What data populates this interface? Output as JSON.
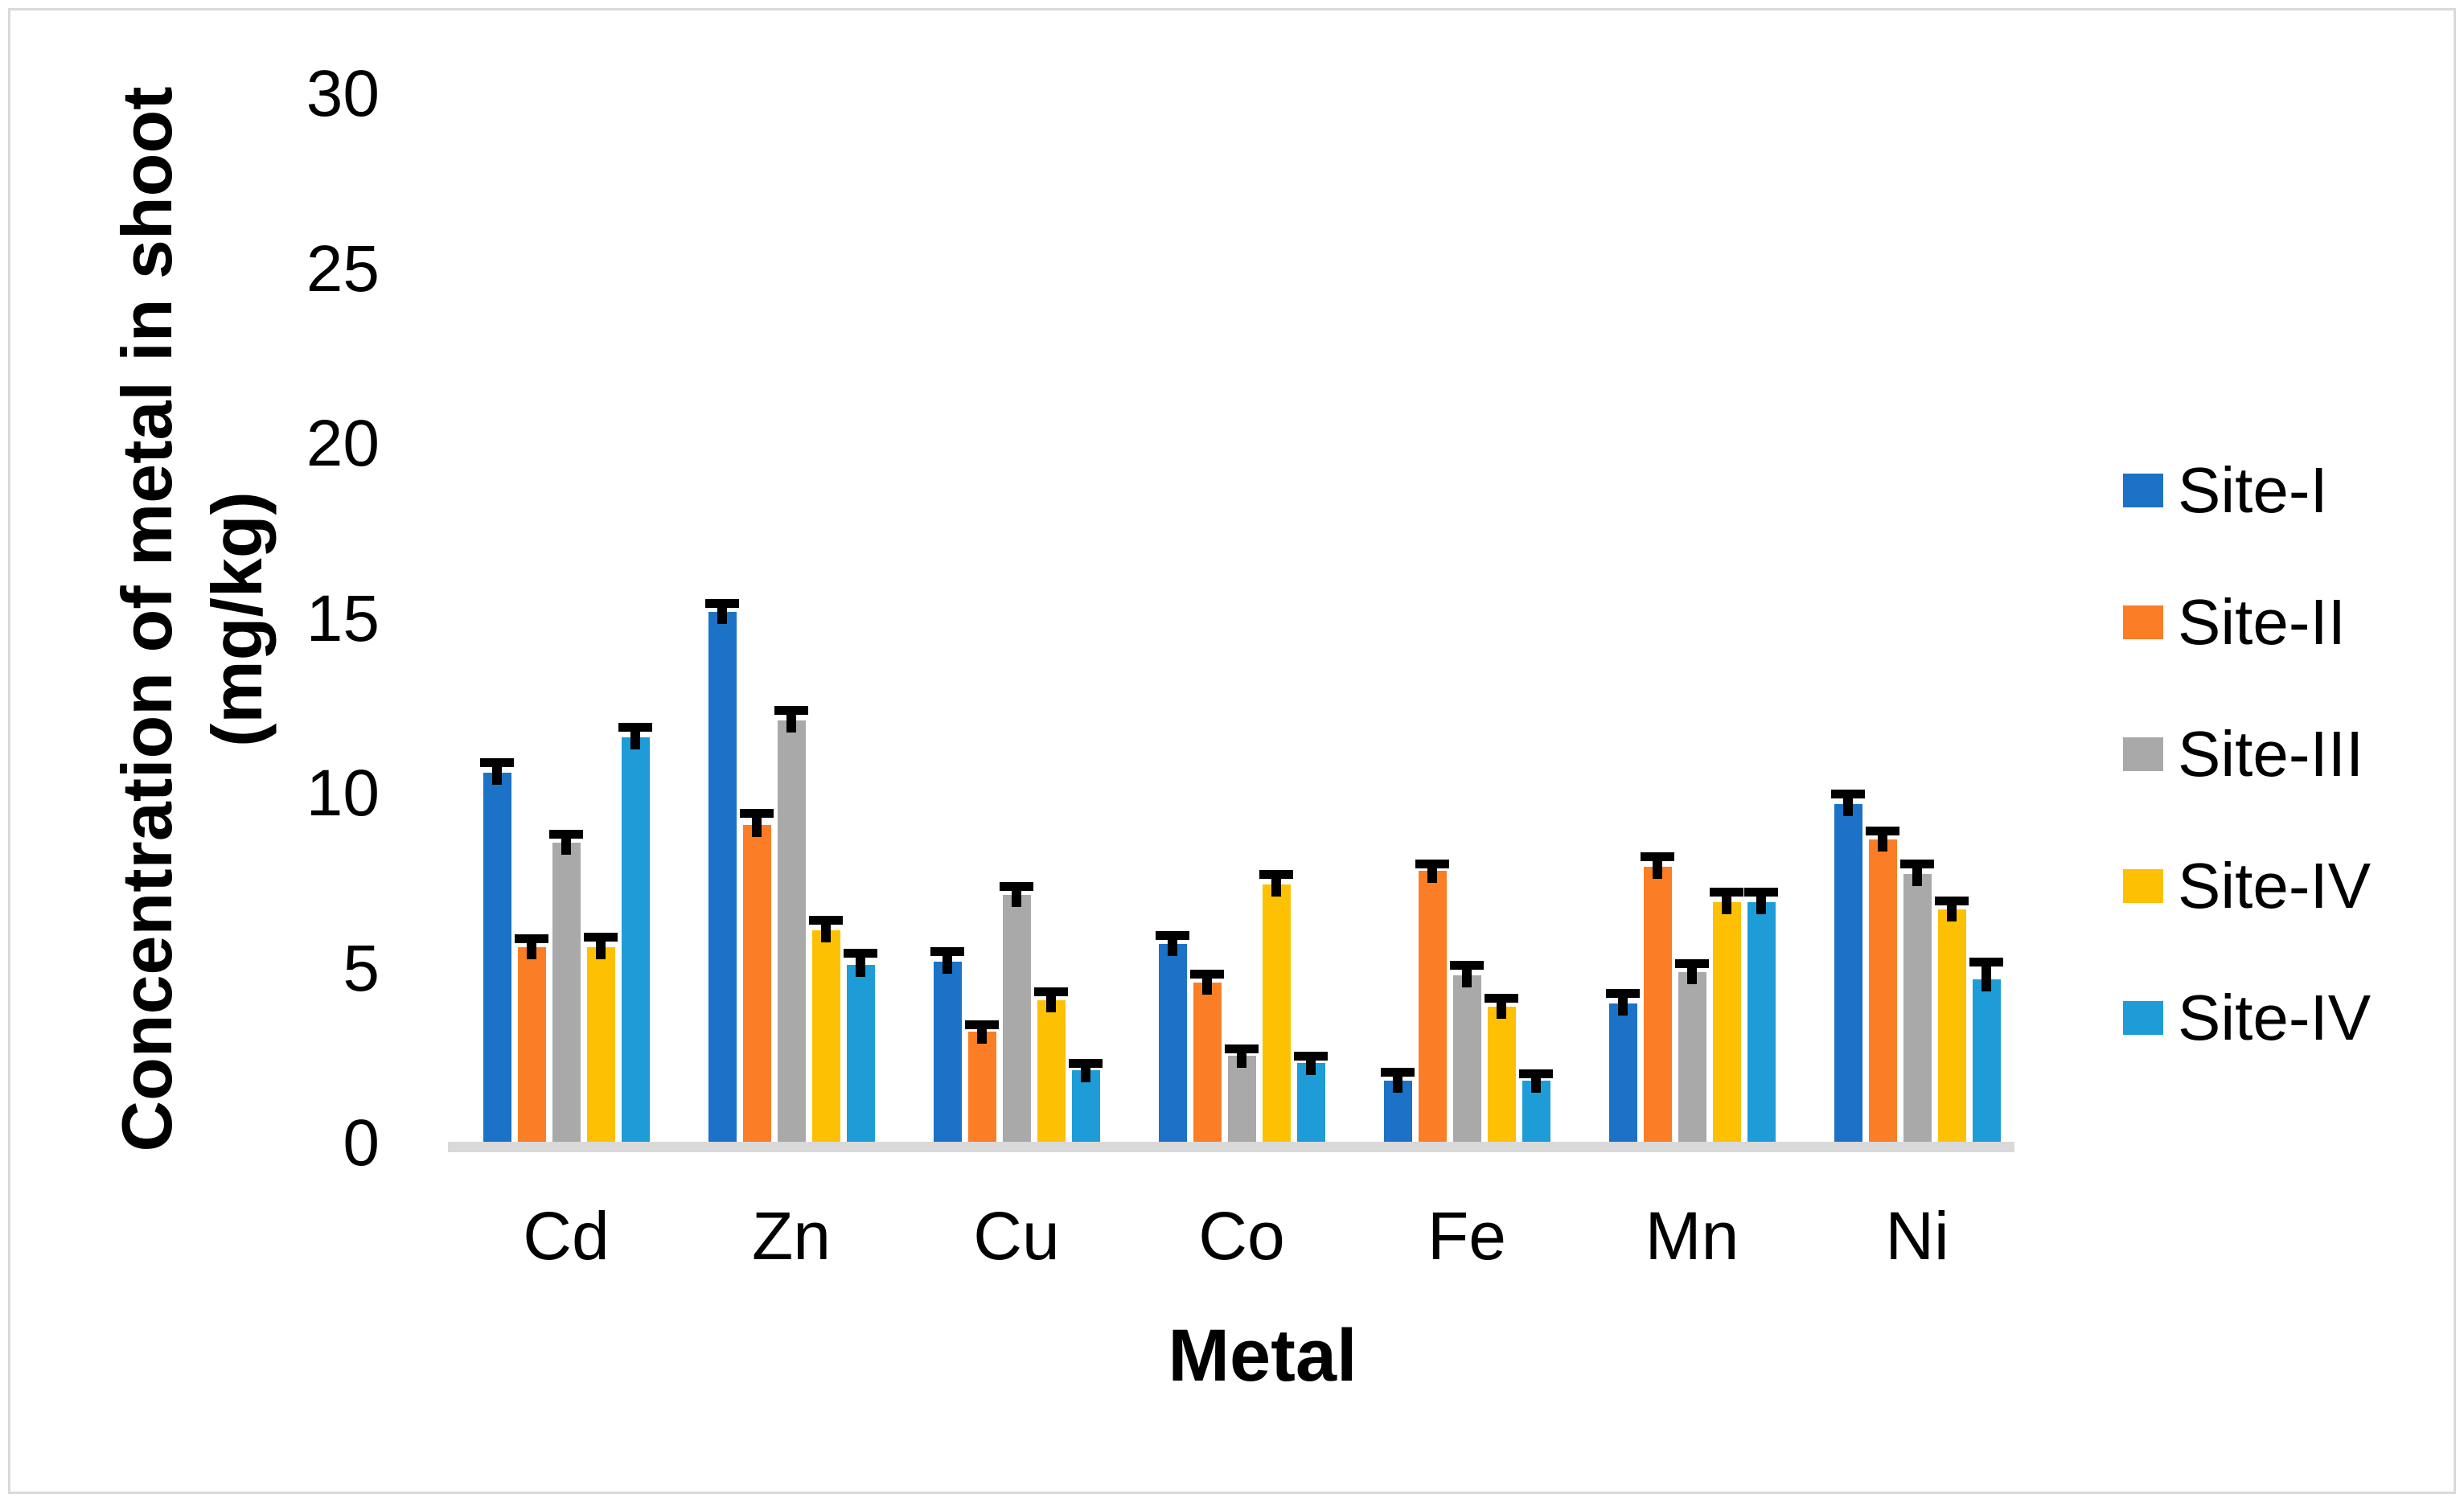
{
  "chart_data": {
    "type": "bar",
    "title": "",
    "xlabel": "Metal",
    "ylabel": "Concentration of metal in shoot (mg/kg)",
    "ylabel_lines": [
      "Concentration of metal in shoot",
      "(mg/kg)"
    ],
    "categories": [
      "Cd",
      "Zn",
      "Cu",
      "Co",
      "Fe",
      "Mn",
      "Ni"
    ],
    "ylim": [
      0,
      30
    ],
    "yticks": [
      0,
      5,
      10,
      15,
      20,
      25,
      30
    ],
    "grid": false,
    "legend_position": "right",
    "error_bars": "upper only, black caps",
    "background": "#ffffff",
    "axis_line_color": "#d9d9d9",
    "series": [
      {
        "name": "Site-I",
        "color": "#1b72c7",
        "values": [
          10.6,
          15.2,
          5.2,
          5.7,
          1.8,
          4.0,
          9.7
        ],
        "errors": [
          0.3,
          0.25,
          0.3,
          0.25,
          0.25,
          0.3,
          0.3
        ]
      },
      {
        "name": "Site-II",
        "color": "#fb7d26",
        "values": [
          5.6,
          9.1,
          3.2,
          4.6,
          7.8,
          7.9,
          8.7
        ],
        "errors": [
          0.25,
          0.35,
          0.2,
          0.25,
          0.2,
          0.3,
          0.25
        ]
      },
      {
        "name": "Site-III",
        "color": "#a9a9a9",
        "values": [
          8.6,
          12.1,
          7.1,
          2.5,
          4.8,
          4.9,
          7.7
        ],
        "errors": [
          0.25,
          0.3,
          0.25,
          0.2,
          0.3,
          0.25,
          0.3
        ]
      },
      {
        "name": "Site-IV",
        "color": "#fec002",
        "values": [
          5.6,
          6.1,
          4.1,
          7.4,
          3.9,
          6.9,
          6.7
        ],
        "errors": [
          0.3,
          0.3,
          0.25,
          0.3,
          0.25,
          0.3,
          0.25
        ]
      },
      {
        "name": "Site-IV",
        "color": "#1e9cd7",
        "values": [
          11.6,
          5.1,
          2.1,
          2.3,
          1.8,
          6.9,
          4.7
        ],
        "errors": [
          0.3,
          0.35,
          0.2,
          0.2,
          0.2,
          0.3,
          0.5
        ]
      }
    ]
  }
}
